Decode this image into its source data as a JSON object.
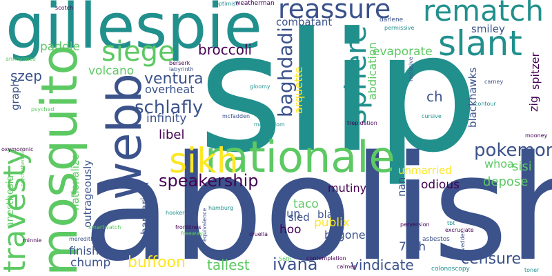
{
  "colors": {
    "background": "#ffffff",
    "palette": [
      "#440154",
      "#3b528b",
      "#21908d",
      "#5dc963",
      "#fde725"
    ]
  },
  "words": [
    "slip",
    "abolish",
    "gillespie",
    "mosquito",
    "webb",
    "rationale",
    "reassure",
    "rematch",
    "slant",
    "sphere",
    "siege",
    "sikh",
    "travesty",
    "schlafly",
    "speakership",
    "broccoli",
    "baghdadi",
    "pokemon",
    "ventura",
    "volcano",
    "paddle",
    "szep",
    "combatant",
    "evaporate",
    "abdication",
    "arquette",
    "infinity",
    "libel",
    "overheat",
    "ch",
    "spitzer",
    "zig",
    "blackhawks",
    "sisi",
    "whoa",
    "depose",
    "unmarried",
    "odious",
    "mutiny",
    "nan",
    "taco",
    "blah",
    "publix",
    "bygone",
    "70th",
    "hoo",
    "dun",
    "sled",
    "buffoon",
    "tallest",
    "ivana",
    "vindicate",
    "censure",
    "chump",
    "finisher",
    "barbarism",
    "outrageously",
    "nationalize",
    "anesthesia",
    "graph",
    "til",
    "smiley",
    "darlene",
    "permissive",
    "reclusive",
    "scotch",
    "optimist",
    "weatherman",
    "berserk",
    "labyrinth",
    "annoyance",
    "gloomy",
    "mcfadden",
    "martyrdom",
    "psyched",
    "oxymoronic",
    "psychotherapist",
    "carney",
    "contour",
    "cursive",
    "trepidation",
    "mooney",
    "hamburg",
    "frontlines",
    "freeway",
    "smartwatch",
    "cruella",
    "minnie",
    "meredith",
    "hooker",
    "equivalence",
    "perversion",
    "tbt",
    "excruciate",
    "asbestos",
    "vedder",
    "contemplation",
    "56th",
    "calmer",
    "colonoscopy",
    "toner"
  ]
}
